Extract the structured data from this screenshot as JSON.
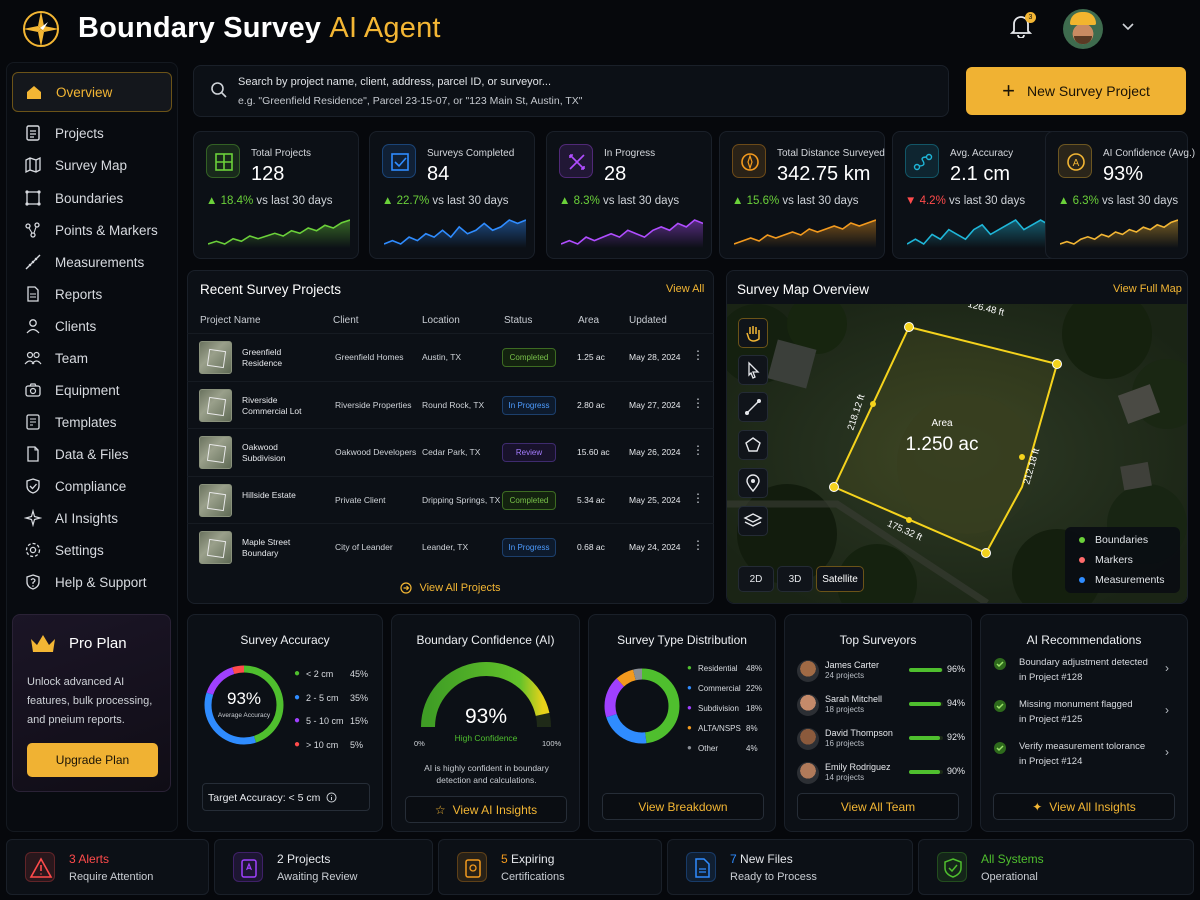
{
  "header": {
    "title_main": "Boundary Survey",
    "title_accent": "AI Agent",
    "notification_count": "3"
  },
  "sidebar": {
    "items": [
      {
        "label": "Overview",
        "icon": "home-icon"
      },
      {
        "label": "Projects",
        "icon": "projects-icon"
      },
      {
        "label": "Survey Map",
        "icon": "map-icon"
      },
      {
        "label": "Boundaries",
        "icon": "boundaries-icon"
      },
      {
        "label": "Points & Markers",
        "icon": "points-icon"
      },
      {
        "label": "Measurements",
        "icon": "ruler-icon"
      },
      {
        "label": "Reports",
        "icon": "reports-icon"
      },
      {
        "label": "Clients",
        "icon": "clients-icon"
      },
      {
        "label": "Team",
        "icon": "team-icon"
      },
      {
        "label": "Equipment",
        "icon": "equipment-icon"
      },
      {
        "label": "Templates",
        "icon": "templates-icon"
      },
      {
        "label": "Data & Files",
        "icon": "files-icon"
      },
      {
        "label": "Compliance",
        "icon": "shield-icon"
      },
      {
        "label": "AI Insights",
        "icon": "sparkle-icon"
      },
      {
        "label": "Settings",
        "icon": "gear-icon"
      },
      {
        "label": "Help & Support",
        "icon": "help-icon"
      }
    ]
  },
  "pro_plan": {
    "title": "Pro Plan",
    "desc": "Unlock advanced AI features, bulk processing, and pneium reports.",
    "button": "Upgrade Plan"
  },
  "search": {
    "placeholder_line1": "Search by project name, client, address, parcel ID, or surveyor...",
    "placeholder_line2": "e.g. \"Greenfield Residence\", Parcel 23-15-07, or \"123 Main St, Austin, TX\""
  },
  "new_project_button": "New Survey Project",
  "kpis": [
    {
      "label": "Total Projects",
      "value": "128",
      "delta": "18.4%",
      "direction": "up",
      "suffix": "vs last 30 days",
      "color": "#6bd13a",
      "spark": [
        3,
        4,
        3,
        5,
        4,
        6,
        5,
        6,
        7,
        6,
        8,
        7,
        9,
        8,
        10,
        9,
        11,
        12
      ]
    },
    {
      "label": "Surveys Completed",
      "value": "84",
      "delta": "22.7%",
      "direction": "up",
      "suffix": "vs last 30 days",
      "color": "#2f8cff",
      "spark": [
        4,
        5,
        4,
        6,
        5,
        7,
        6,
        8,
        6,
        9,
        7,
        8,
        10,
        8,
        9,
        11,
        10,
        11
      ]
    },
    {
      "label": "In Progress",
      "value": "28",
      "delta": "8.3%",
      "direction": "up",
      "suffix": "vs last 30 days",
      "color": "#b04dff",
      "spark": [
        4,
        5,
        4,
        6,
        5,
        6,
        7,
        6,
        8,
        7,
        6,
        8,
        9,
        8,
        10,
        9,
        11,
        10
      ]
    },
    {
      "label": "Total Distance Surveyed",
      "value": "342.75 km",
      "delta": "15.6%",
      "direction": "up",
      "suffix": "vs last 30 days",
      "color": "#f39a1e",
      "spark": [
        3,
        4,
        5,
        4,
        6,
        5,
        6,
        7,
        6,
        8,
        7,
        8,
        9,
        8,
        10,
        9,
        10,
        11
      ]
    },
    {
      "label": "Avg. Accuracy",
      "value": "2.1 cm",
      "delta": "4.2%",
      "direction": "down",
      "suffix": "vs last 30 days",
      "color": "#1fb6d8",
      "spark": [
        5,
        6,
        5,
        7,
        6,
        8,
        7,
        6,
        8,
        9,
        7,
        8,
        9,
        10,
        8,
        9,
        10,
        9
      ]
    },
    {
      "label": "AI Confidence (Avg.)",
      "value": "93%",
      "delta": "6.3%",
      "direction": "up",
      "suffix": "vs last 30 days",
      "color": "#f3b634",
      "spark": [
        3,
        4,
        3,
        5,
        6,
        5,
        7,
        6,
        8,
        7,
        9,
        8,
        10,
        9,
        11,
        10,
        12,
        13
      ]
    }
  ],
  "recent": {
    "title": "Recent Survey Projects",
    "view_all": "View All",
    "columns": [
      "Project Name",
      "Client",
      "Location",
      "Status",
      "Area",
      "Updated"
    ],
    "rows": [
      {
        "name": "Greenfield Residence",
        "client": "Greenfield Homes",
        "location": "Austin, TX",
        "status": "Completed",
        "area": "1.25 ac",
        "updated": "May 28, 2024"
      },
      {
        "name": "Riverside Commercial Lot",
        "client": "Riverside Properties",
        "location": "Round Rock, TX",
        "status": "In Progress",
        "area": "2.80 ac",
        "updated": "May 27, 2024"
      },
      {
        "name": "Oakwood Subdivision",
        "client": "Oakwood Developers",
        "location": "Cedar Park, TX",
        "status": "Review",
        "area": "15.60 ac",
        "updated": "May 26, 2024"
      },
      {
        "name": "Hillside Estate",
        "client": "Private Client",
        "location": "Dripping Springs, TX",
        "status": "Completed",
        "area": "5.34 ac",
        "updated": "May 25, 2024"
      },
      {
        "name": "Maple Street Boundary",
        "client": "City of Leander",
        "location": "Leander, TX",
        "status": "In Progress",
        "area": "0.68 ac",
        "updated": "May 24, 2024"
      }
    ],
    "footer_link": "View All Projects"
  },
  "map": {
    "title": "Survey Map Overview",
    "view_full": "View Full Map",
    "area_label": "Area",
    "area_value": "1.250 ac",
    "edge_top": "126.48 ft",
    "edge_left": "218.12 ft",
    "edge_right": "212.18 ft",
    "edge_bottom": "175.32 ft",
    "modes": [
      "2D",
      "3D",
      "Satellite"
    ],
    "active_mode": "Satellite",
    "legend": [
      {
        "label": "Boundaries",
        "color": "#6bd13a"
      },
      {
        "label": "Markers",
        "color": "#ff6b6b"
      },
      {
        "label": "Measurements",
        "color": "#2f8cff"
      }
    ]
  },
  "accuracy": {
    "title": "Survey Accuracy",
    "value": "93%",
    "sub": "Average Accuracy",
    "legend": [
      {
        "label": "< 2 cm",
        "pct": "45%",
        "share": 45,
        "color": "#4fbf2e"
      },
      {
        "label": "2 - 5 cm",
        "pct": "35%",
        "share": 35,
        "color": "#2f8cff"
      },
      {
        "label": "5 - 10 cm",
        "pct": "15%",
        "share": 15,
        "color": "#a040ff"
      },
      {
        "label": "> 10 cm",
        "pct": "5%",
        "share": 5,
        "color": "#ff4b4b"
      }
    ],
    "target": "Target Accuracy: < 5 cm"
  },
  "confidence": {
    "title": "Boundary Confidence (AI)",
    "value": "93%",
    "level": 93,
    "label": "High Confidence",
    "min": "0%",
    "max": "100%",
    "note": "AI is highly confident in boundary detection and calculations.",
    "button": "View AI Insights"
  },
  "distribution": {
    "title": "Survey Type Distribution",
    "items": [
      {
        "label": "Residential",
        "pct": "48%",
        "share": 48,
        "color": "#4fbf2e"
      },
      {
        "label": "Commercial",
        "pct": "22%",
        "share": 22,
        "color": "#2f8cff"
      },
      {
        "label": "Subdivision",
        "pct": "18%",
        "share": 18,
        "color": "#a040ff"
      },
      {
        "label": "ALTA/NSPS",
        "pct": "8%",
        "share": 8,
        "color": "#f39a1e"
      },
      {
        "label": "Other",
        "pct": "4%",
        "share": 4,
        "color": "#8a8f96"
      }
    ],
    "button": "View Breakdown"
  },
  "surveyors": {
    "title": "Top Surveyors",
    "items": [
      {
        "name": "James Carter",
        "projects": "24 projects",
        "pct": "96%",
        "level": 96
      },
      {
        "name": "Sarah Mitchell",
        "projects": "18 projects",
        "pct": "94%",
        "level": 94
      },
      {
        "name": "David Thompson",
        "projects": "16 projects",
        "pct": "92%",
        "level": 92
      },
      {
        "name": "Emily Rodriguez",
        "projects": "14 projects",
        "pct": "90%",
        "level": 90
      }
    ],
    "button": "View All Team"
  },
  "recommendations": {
    "title": "AI Recommendations",
    "items": [
      {
        "l1": "Boundary adjustment detected",
        "l2": "in Project #128"
      },
      {
        "l1": "Missing monument flagged",
        "l2": "in Project #125"
      },
      {
        "l1": "Verify measurement tolorance",
        "l2": "in Project #124"
      }
    ],
    "button": "View All Insights"
  },
  "footer": [
    {
      "l1_accent": "3 Alerts",
      "l1": "",
      "l2": "Require Attention",
      "color": "#ff4b4b"
    },
    {
      "l1_accent": "",
      "l1": "2 Projects",
      "l2": "Awaiting Review",
      "color": "#a040ff"
    },
    {
      "l1_accent": "5",
      "l1": " Expiring",
      "l2": "Certifications",
      "color": "#f39a1e"
    },
    {
      "l1_accent": "7",
      "l1": " New Files",
      "l2": "Ready to Process",
      "color": "#2f8cff"
    },
    {
      "l1_accent": "All Systems",
      "l1": "",
      "l2": "Operational",
      "color": "#4fbf2e"
    }
  ]
}
